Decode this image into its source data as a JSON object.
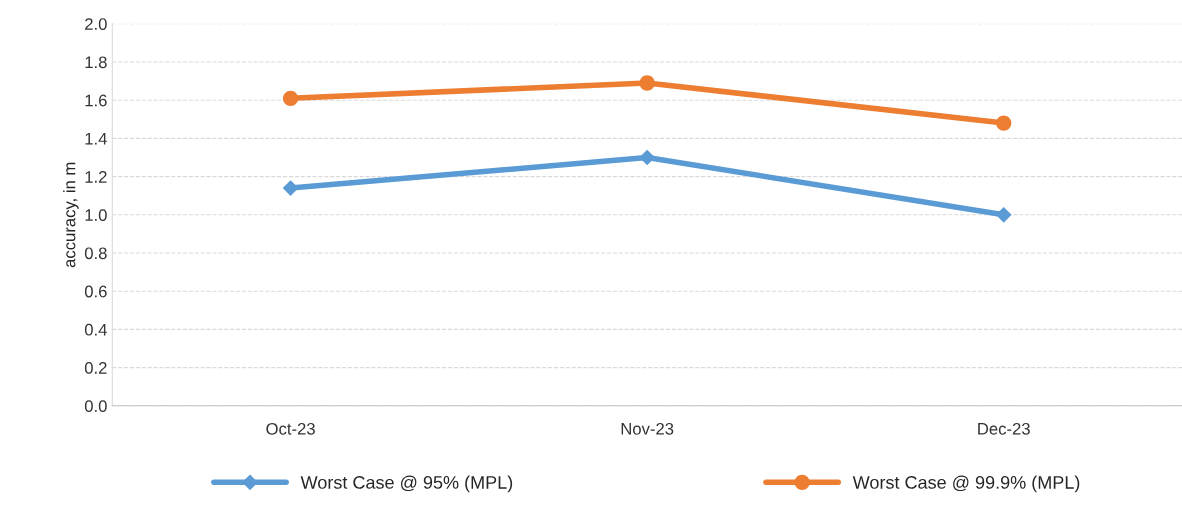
{
  "chart_data": {
    "type": "line",
    "ylabel": "accuracy, in m",
    "categories": [
      "Oct-23",
      "Nov-23",
      "Dec-23"
    ],
    "series": [
      {
        "name": "Worst Case @ 95% (MPL)",
        "color": "#5b9bd5",
        "marker": "diamond",
        "values": [
          1.14,
          1.3,
          1.0
        ]
      },
      {
        "name": "Worst Case @ 99.9% (MPL)",
        "color": "#ed7d31",
        "marker": "circle",
        "values": [
          1.61,
          1.69,
          1.48
        ]
      }
    ],
    "ylim": [
      0,
      2.0
    ],
    "yticks": [
      {
        "value": 0,
        "label": "0.0"
      },
      0.2,
      0.4,
      0.6,
      0.8,
      {
        "value": 1,
        "label": "1.0"
      },
      1.2,
      1.4,
      1.6,
      1.8,
      {
        "value": 2,
        "label": "2.0"
      }
    ],
    "grid": "y",
    "legend": "bottom",
    "line_style": "solid"
  }
}
